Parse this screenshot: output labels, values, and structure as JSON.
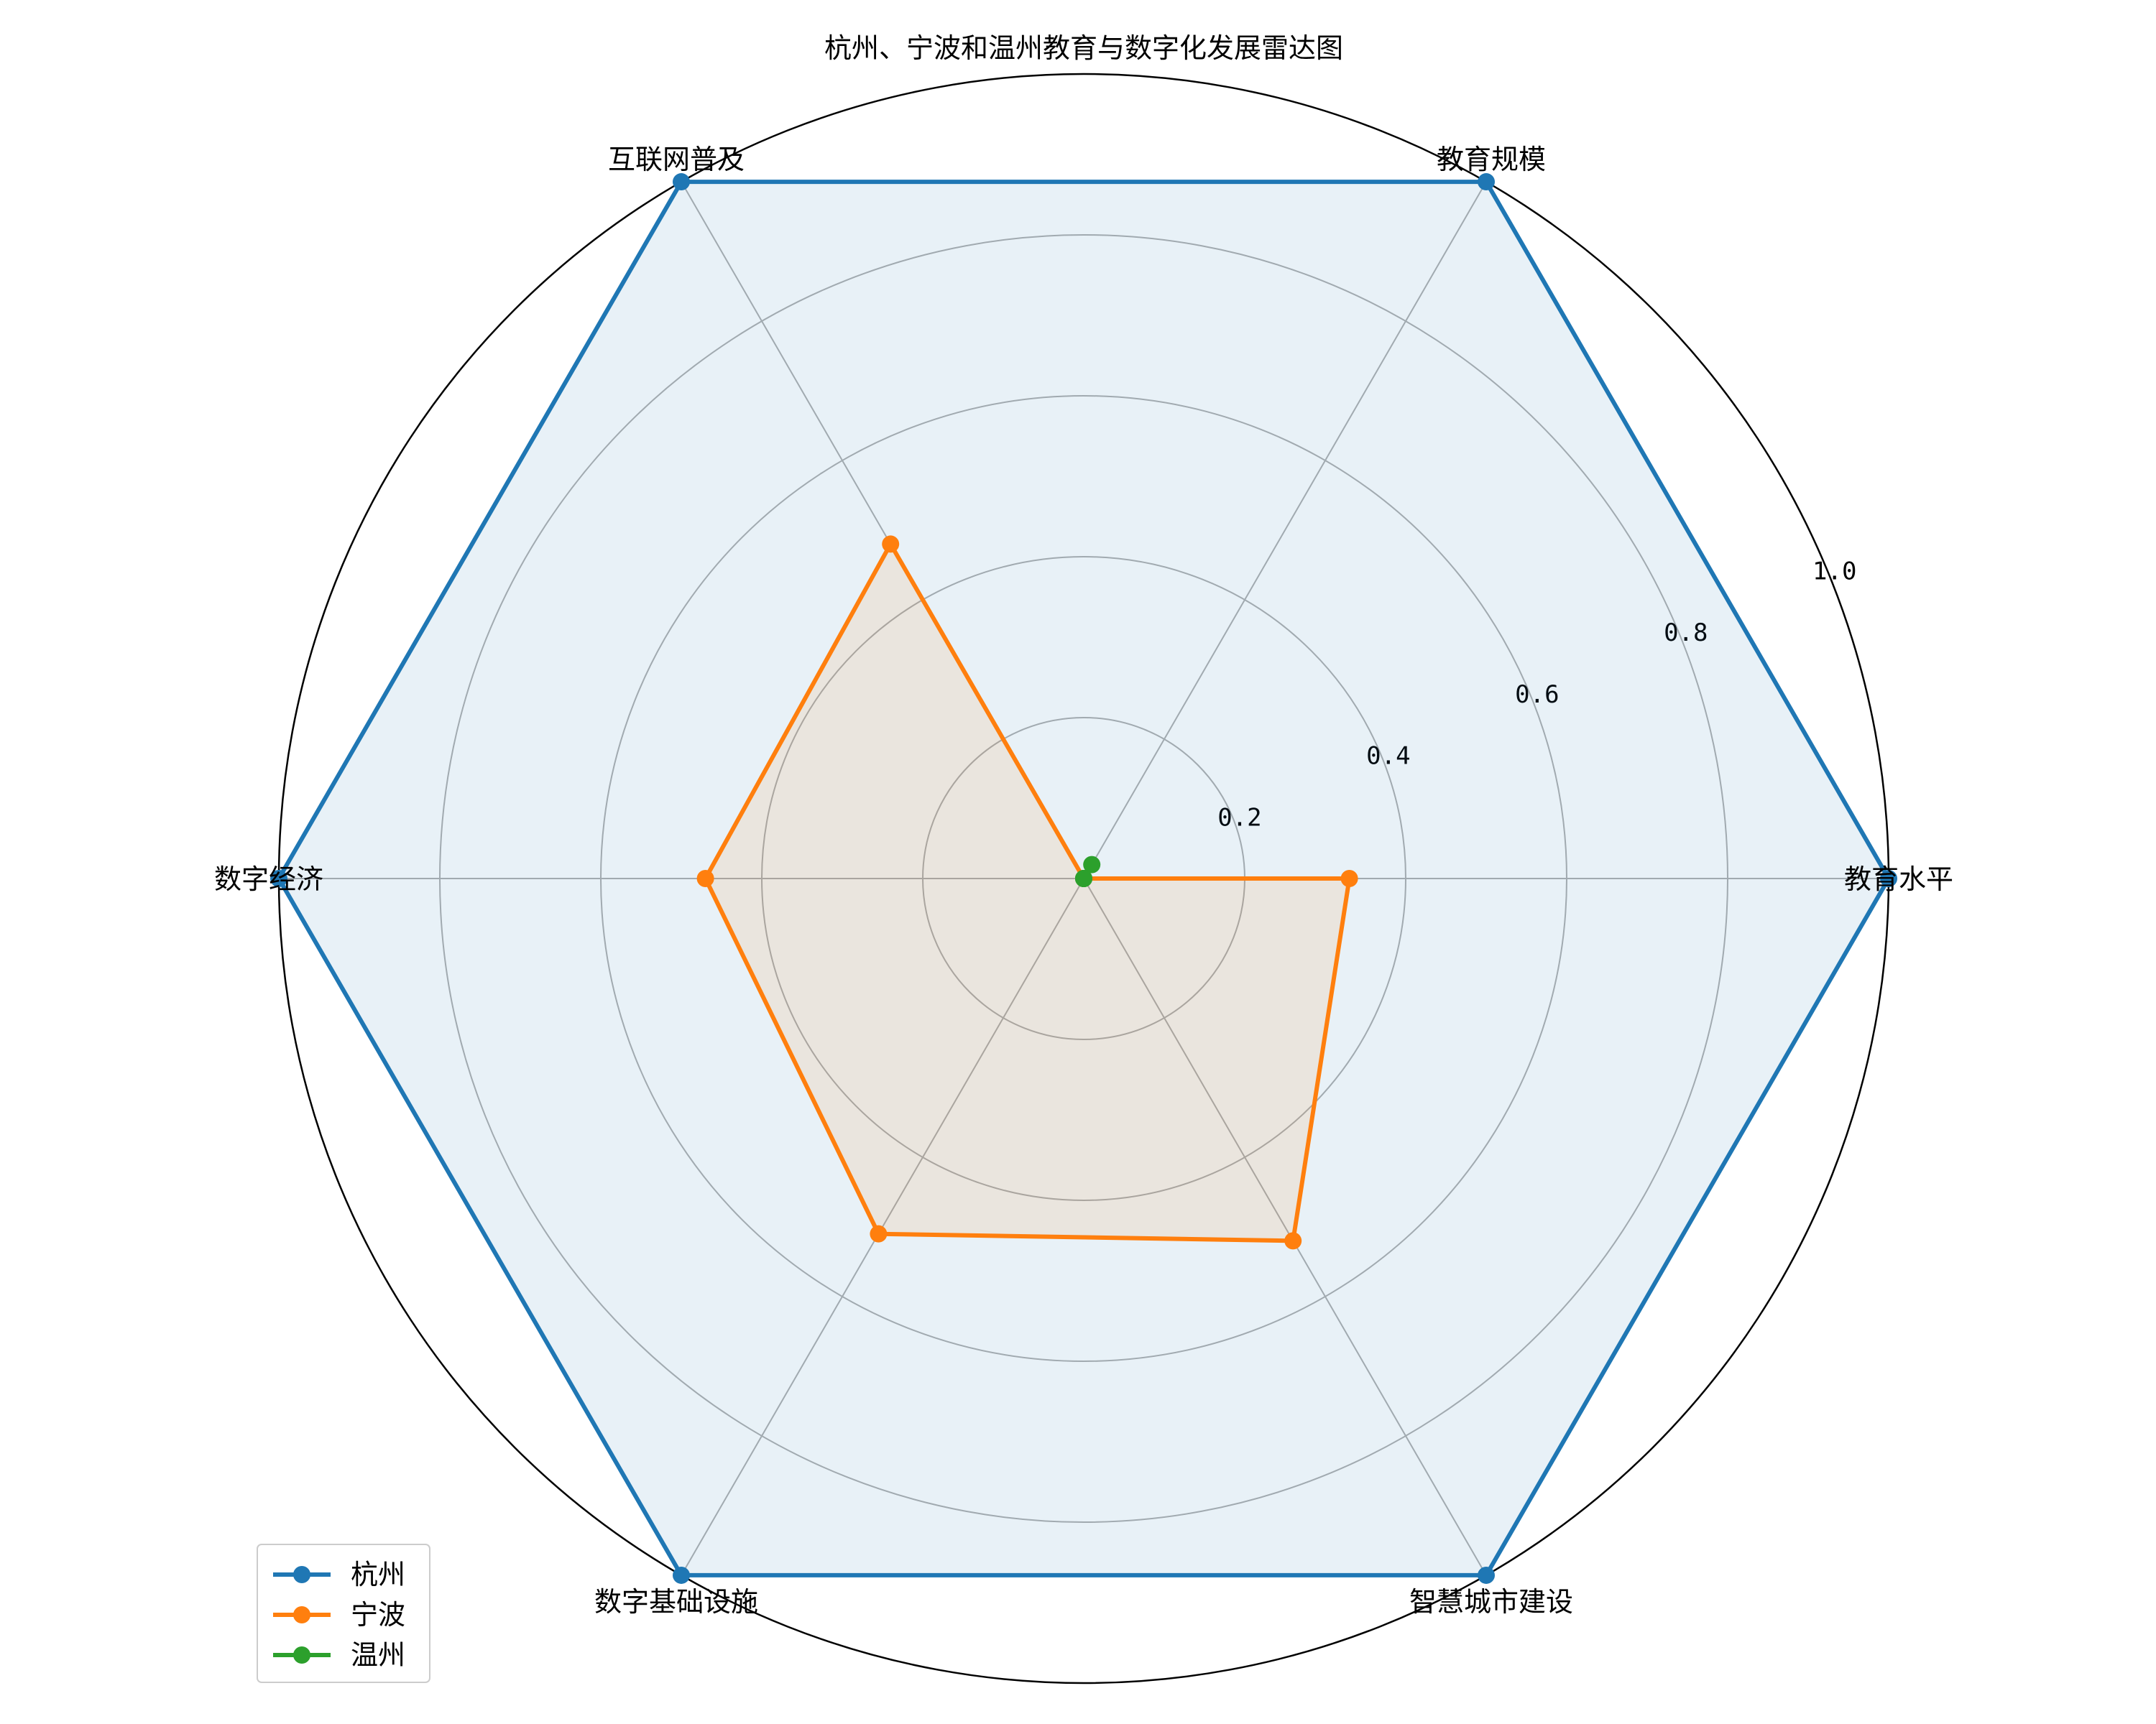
{
  "chart_data": {
    "type": "radar",
    "title": "杭州、宁波和温州教育与数字化发展雷达图",
    "categories": [
      "教育水平",
      "教育规模",
      "互联网普及",
      "数字经济",
      "数字基础设施",
      "智慧城市建设"
    ],
    "rlim": [
      0,
      1.0
    ],
    "rticks": [
      0.2,
      0.4,
      0.6,
      0.8,
      1.0
    ],
    "rtick_labels": [
      "0.2",
      "0.4",
      "0.6",
      "0.8",
      "1.0"
    ],
    "grid": true,
    "legend_position": "lower-left",
    "series": [
      {
        "name": "杭州",
        "color": "#1f77b4",
        "values": [
          1.0,
          1.0,
          1.0,
          1.0,
          1.0,
          1.0
        ]
      },
      {
        "name": "宁波",
        "color": "#ff7f0e",
        "values": [
          0.33,
          0.0,
          0.48,
          0.47,
          0.51,
          0.52
        ]
      },
      {
        "name": "温州",
        "color": "#2ca02c",
        "values": [
          0.0,
          0.02,
          0.0,
          0.0,
          0.0,
          0.0
        ]
      }
    ]
  }
}
